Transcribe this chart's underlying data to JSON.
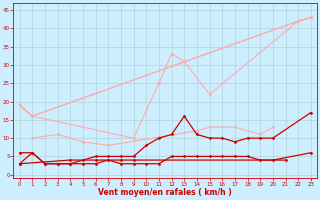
{
  "background_color": "#cceeff",
  "grid_color": "#aacccc",
  "xlabel": "Vent moyen/en rafales ( km/h )",
  "xlabel_color": "#cc0000",
  "xlabel_fontsize": 5.5,
  "ytick_labels": [
    "0",
    "5",
    "10",
    "15",
    "20",
    "25",
    "30",
    "35",
    "40",
    "45"
  ],
  "yticks": [
    0,
    5,
    10,
    15,
    20,
    25,
    30,
    35,
    40,
    45
  ],
  "xticks": [
    0,
    1,
    2,
    3,
    4,
    5,
    6,
    7,
    8,
    9,
    10,
    11,
    12,
    13,
    14,
    15,
    16,
    17,
    18,
    19,
    20,
    21,
    22,
    23
  ],
  "ylim": [
    -1,
    47
  ],
  "xlim": [
    -0.5,
    23.5
  ],
  "series": [
    {
      "x": [
        0,
        1,
        22,
        23
      ],
      "y": [
        19,
        16,
        42,
        43
      ],
      "color": "#ffaaaa",
      "linewidth": 0.8,
      "marker": null,
      "markersize": 0,
      "connect_gaps": false
    },
    {
      "x": [
        0,
        1,
        9,
        11,
        12,
        13,
        15,
        22,
        23
      ],
      "y": [
        19,
        16,
        10,
        25,
        33,
        31,
        22,
        42,
        43
      ],
      "color": "#ffaaaa",
      "linewidth": 0.8,
      "marker": "D",
      "markersize": 1.5,
      "connect_gaps": true
    },
    {
      "x": [
        1,
        3,
        5,
        7,
        14,
        15,
        17,
        19,
        20
      ],
      "y": [
        10,
        11,
        9,
        8,
        12,
        13,
        13,
        11,
        13
      ],
      "color": "#ffaaaa",
      "linewidth": 0.8,
      "marker": "D",
      "markersize": 1.5,
      "connect_gaps": true
    },
    {
      "x": [
        0,
        1,
        2,
        3,
        4,
        5,
        6,
        7,
        8,
        9,
        10,
        11,
        12,
        13,
        14,
        15,
        16,
        17,
        18,
        19,
        20,
        23
      ],
      "y": [
        3,
        6,
        3,
        3,
        3,
        4,
        5,
        5,
        5,
        5,
        8,
        10,
        11,
        16,
        11,
        10,
        10,
        9,
        10,
        10,
        10,
        17
      ],
      "color": "#cc0000",
      "linewidth": 0.9,
      "marker": "D",
      "markersize": 1.5,
      "connect_gaps": true
    },
    {
      "x": [
        0,
        1,
        2,
        3,
        4,
        5,
        6,
        7,
        8,
        9,
        10,
        11,
        12,
        13,
        14,
        15,
        16,
        17,
        18,
        19,
        20,
        23
      ],
      "y": [
        6,
        6,
        3,
        3,
        3,
        3,
        3,
        4,
        3,
        3,
        3,
        3,
        5,
        5,
        5,
        5,
        5,
        5,
        5,
        4,
        4,
        6
      ],
      "color": "#cc0000",
      "linewidth": 0.9,
      "marker": "D",
      "markersize": 1.5,
      "connect_gaps": true
    },
    {
      "x": [
        0,
        4,
        6,
        8,
        9,
        21
      ],
      "y": [
        3,
        4,
        4,
        4,
        4,
        4
      ],
      "color": "#cc0000",
      "linewidth": 0.9,
      "marker": "D",
      "markersize": 1.5,
      "connect_gaps": true
    },
    {
      "x": [
        0,
        1,
        22,
        23
      ],
      "y": [
        19,
        16,
        42,
        43
      ],
      "color": "#ffaaaa",
      "linewidth": 0.8,
      "marker": "D",
      "markersize": 1.5,
      "connect_gaps": false
    }
  ]
}
